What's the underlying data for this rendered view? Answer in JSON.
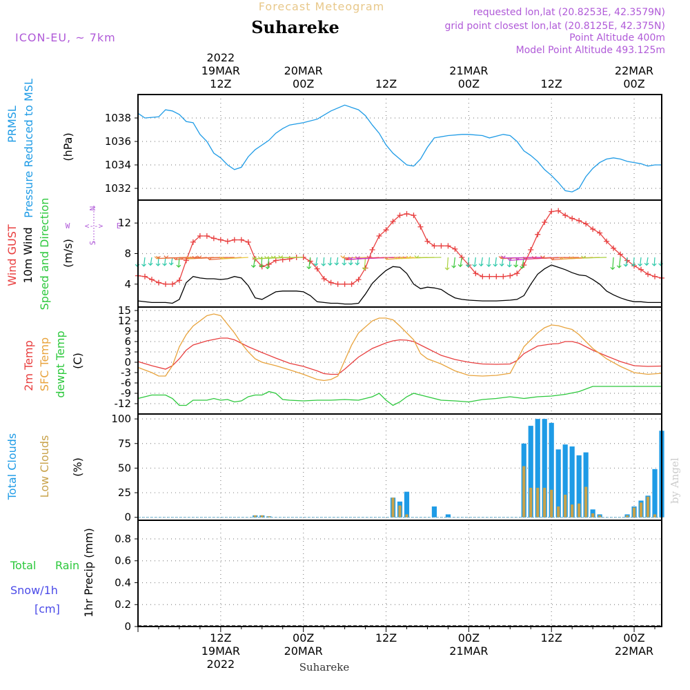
{
  "header": {
    "forecast_label": "Forecast Meteogram",
    "location": "Suhareke",
    "model": "ICON-EU, ~ 7km",
    "requested": "requested lon,lat (20.8253E, 42.3579N)",
    "grid": "grid point closest lon,lat (20.8125E, 42.375N)",
    "point_alt": "Point Altitude 400m",
    "model_alt": "Model Point Altitude 493.125m",
    "footer_location": "Suhareke",
    "watermark": "by Angel"
  },
  "time_axis": {
    "top_labels": [
      {
        "h": 12,
        "lines": [
          "2022",
          "19MAR",
          "12Z"
        ]
      },
      {
        "h": 24,
        "lines": [
          "20MAR",
          "00Z"
        ]
      },
      {
        "h": 36,
        "lines": [
          "12Z"
        ]
      },
      {
        "h": 48,
        "lines": [
          "21MAR",
          "00Z"
        ]
      },
      {
        "h": 60,
        "lines": [
          "12Z"
        ]
      },
      {
        "h": 72,
        "lines": [
          "22MAR",
          "00Z"
        ]
      }
    ],
    "bottom_labels": [
      {
        "h": 12,
        "lines": [
          "12Z",
          "19MAR",
          "2022"
        ]
      },
      {
        "h": 24,
        "lines": [
          "00Z",
          "20MAR"
        ]
      },
      {
        "h": 36,
        "lines": [
          "12Z"
        ]
      },
      {
        "h": 48,
        "lines": [
          "00Z",
          "21MAR"
        ]
      },
      {
        "h": 60,
        "lines": [
          "12Z"
        ]
      },
      {
        "h": 72,
        "lines": [
          "00Z",
          "22MAR"
        ]
      }
    ]
  },
  "chart_data": [
    {
      "type": "line",
      "title": "PRMSL Pressure Reduced to MSL",
      "ylabel": "(hPa)",
      "ylim": [
        1031,
        1040
      ],
      "yticks": [
        1032,
        1034,
        1036,
        1038
      ],
      "series": [
        {
          "name": "PRMSL Pressure Reduced to MSL",
          "color": "#1e9be6",
          "x": [
            0,
            1,
            3,
            4,
            5,
            6,
            7,
            8,
            9,
            10,
            11,
            12,
            13,
            14,
            15,
            16,
            17,
            18,
            19,
            20,
            21,
            22,
            23,
            24,
            26,
            28,
            30,
            32,
            33,
            34,
            35,
            36,
            37,
            38,
            39,
            40,
            41,
            42,
            43,
            45,
            47,
            48,
            50,
            51,
            53,
            54,
            55,
            56,
            57,
            58,
            59,
            60,
            61,
            62,
            63,
            64,
            65,
            66,
            67,
            68,
            69,
            70,
            71,
            72,
            73,
            74,
            75,
            76
          ],
          "y": [
            1038.4,
            1038.0,
            1038.1,
            1038.7,
            1038.6,
            1038.3,
            1037.7,
            1037.6,
            1036.6,
            1036.0,
            1035.0,
            1034.6,
            1034.0,
            1033.6,
            1033.8,
            1034.7,
            1035.3,
            1035.7,
            1036.1,
            1036.7,
            1037.1,
            1037.4,
            1037.5,
            1037.6,
            1037.9,
            1038.6,
            1039.1,
            1038.7,
            1038.2,
            1037.4,
            1036.7,
            1035.7,
            1035.0,
            1034.5,
            1034.0,
            1033.9,
            1034.5,
            1035.5,
            1036.3,
            1036.5,
            1036.6,
            1036.6,
            1036.5,
            1036.3,
            1036.6,
            1036.5,
            1036.0,
            1035.2,
            1034.8,
            1034.3,
            1033.6,
            1033.1,
            1032.5,
            1031.8,
            1031.7,
            1032.0,
            1033.0,
            1033.7,
            1034.2,
            1034.5,
            1034.6,
            1034.5,
            1034.3,
            1034.2,
            1034.1,
            1033.9,
            1034.0,
            1034.0
          ]
        }
      ]
    },
    {
      "type": "line",
      "title": "Wind GUST 10m Wind Speed and Direction",
      "ylabel": "(m/s)",
      "ylim": [
        1,
        15
      ],
      "yticks": [
        4,
        8,
        12
      ],
      "compass": {
        "n": "N",
        "s": "S",
        "w": "W",
        "e": "E"
      },
      "series": [
        {
          "name": "Wind GUST",
          "color": "#e83e3e",
          "marker": "+",
          "x": [
            0,
            1,
            2,
            3,
            4,
            5,
            6,
            7,
            8,
            9,
            10,
            11,
            12,
            13,
            14,
            15,
            16,
            17,
            18,
            19,
            20,
            21,
            22,
            23,
            24,
            25,
            26,
            27,
            28,
            29,
            30,
            31,
            32,
            33,
            34,
            35,
            36,
            37,
            38,
            39,
            40,
            41,
            42,
            43,
            44,
            45,
            46,
            47,
            48,
            49,
            50,
            51,
            52,
            53,
            54,
            55,
            56,
            57,
            58,
            59,
            60,
            61,
            62,
            63,
            64,
            65,
            66,
            67,
            68,
            69,
            70,
            71,
            72,
            73,
            74,
            75,
            76
          ],
          "y": [
            5.1,
            5.0,
            4.6,
            4.2,
            4.0,
            4.0,
            4.5,
            7.1,
            9.5,
            10.3,
            10.3,
            10.0,
            9.8,
            9.6,
            9.8,
            9.8,
            9.5,
            7.3,
            6.3,
            6.6,
            7.1,
            7.2,
            7.3,
            7.5,
            7.5,
            7.0,
            6.0,
            4.7,
            4.2,
            4.0,
            4.0,
            4.0,
            4.6,
            6.1,
            8.5,
            10.3,
            11.1,
            12.2,
            13.0,
            13.2,
            13.0,
            11.5,
            9.6,
            9.0,
            9.0,
            9.0,
            8.6,
            7.5,
            6.5,
            5.4,
            5.0,
            5.0,
            5.0,
            5.0,
            5.1,
            5.4,
            6.5,
            8.5,
            10.5,
            12.1,
            13.5,
            13.6,
            13.0,
            12.6,
            12.3,
            11.9,
            11.2,
            10.7,
            9.6,
            8.7,
            7.9,
            7.1,
            6.4,
            5.9,
            5.3,
            5.0,
            4.8
          ]
        },
        {
          "name": "10m Wind",
          "color": "#000000",
          "x": [
            0,
            2,
            4,
            5,
            6,
            7,
            8,
            9,
            10,
            11,
            12,
            13,
            14,
            15,
            16,
            17,
            18,
            19,
            20,
            21,
            22,
            23,
            24,
            25,
            26,
            27,
            28,
            29,
            30,
            31,
            32,
            33,
            34,
            35,
            36,
            37,
            38,
            39,
            40,
            41,
            42,
            43,
            44,
            45,
            46,
            47,
            48,
            50,
            52,
            54,
            55,
            56,
            57,
            58,
            59,
            60,
            61,
            62,
            63,
            64,
            65,
            66,
            67,
            68,
            69,
            70,
            71,
            72,
            73,
            74,
            75,
            76
          ],
          "y": [
            1.8,
            1.6,
            1.6,
            1.5,
            2.0,
            4.2,
            5.0,
            4.8,
            4.7,
            4.7,
            4.6,
            4.7,
            5.0,
            4.8,
            3.8,
            2.2,
            2.0,
            2.5,
            3.0,
            3.1,
            3.1,
            3.1,
            3.0,
            2.5,
            1.7,
            1.6,
            1.5,
            1.5,
            1.4,
            1.4,
            1.5,
            2.7,
            4.1,
            5.0,
            5.8,
            6.3,
            6.2,
            5.4,
            4.0,
            3.4,
            3.6,
            3.5,
            3.3,
            2.7,
            2.2,
            2.0,
            1.9,
            1.8,
            1.8,
            1.9,
            2.0,
            2.5,
            4.0,
            5.3,
            6.0,
            6.5,
            6.2,
            5.9,
            5.5,
            5.2,
            5.1,
            4.6,
            4.0,
            3.1,
            2.6,
            2.2,
            1.9,
            1.7,
            1.7,
            1.6,
            1.6,
            1.6
          ]
        },
        {
          "name": "Speed and Direction",
          "type": "wind-barbs",
          "colors": [
            "#1e6be6",
            "#e8a33c",
            "#e83e3e",
            "#3cc83c",
            "#c83cc8"
          ]
        }
      ]
    },
    {
      "type": "line",
      "title": "2m Temp, SFC Temp, dewpt Temp",
      "ylabel": "(C)",
      "ylim": [
        -15,
        16
      ],
      "yticks": [
        15,
        12,
        9,
        6,
        3,
        0,
        -3,
        -6,
        -9,
        -12
      ],
      "series": [
        {
          "name": "2m Temp",
          "color": "#e83e3e",
          "x": [
            0,
            2,
            4,
            5,
            6,
            7,
            8,
            10,
            12,
            13,
            14,
            15,
            16,
            18,
            20,
            22,
            24,
            26,
            27,
            28,
            29,
            30,
            32,
            34,
            36,
            37,
            38,
            39,
            40,
            42,
            44,
            46,
            48,
            50,
            52,
            54,
            55,
            56,
            58,
            59,
            60,
            61,
            62,
            63,
            64,
            66,
            68,
            70,
            72,
            74,
            76
          ],
          "y": [
            0.2,
            -1.0,
            -2.0,
            -1.0,
            1.0,
            3.5,
            5.0,
            6.2,
            7.0,
            7.0,
            6.5,
            5.5,
            4.5,
            2.8,
            1.2,
            -0.3,
            -1.2,
            -2.5,
            -3.3,
            -3.5,
            -3.5,
            -2.0,
            1.5,
            4.0,
            5.6,
            6.2,
            6.5,
            6.4,
            6.0,
            4.0,
            2.0,
            0.8,
            0.0,
            -0.5,
            -0.6,
            -0.5,
            0.5,
            2.5,
            4.7,
            5.0,
            5.3,
            5.4,
            6.0,
            6.0,
            5.5,
            3.5,
            1.8,
            0.2,
            -1.0,
            -1.2,
            -1.1
          ]
        },
        {
          "name": "SFC Temp",
          "color": "#e8a33c",
          "x": [
            0,
            2,
            3,
            4,
            5,
            6,
            7,
            8,
            10,
            11,
            12,
            13,
            14,
            15,
            16,
            17,
            18,
            20,
            22,
            24,
            26,
            27,
            28,
            29,
            30,
            31,
            32,
            34,
            35,
            36,
            37,
            38,
            39,
            40,
            41,
            42,
            44,
            46,
            48,
            50,
            52,
            54,
            55,
            56,
            58,
            59,
            60,
            61,
            62,
            63,
            64,
            66,
            68,
            70,
            72,
            74,
            76
          ],
          "y": [
            -1.5,
            -3.0,
            -4.0,
            -4.0,
            -1.0,
            4.5,
            8.0,
            10.5,
            13.5,
            14.0,
            13.5,
            11.0,
            8.5,
            5.5,
            3.0,
            1.0,
            0.0,
            -1.0,
            -2.2,
            -3.5,
            -5.0,
            -5.3,
            -5.0,
            -4.0,
            0.5,
            5.0,
            8.5,
            12.0,
            12.8,
            12.8,
            12.3,
            10.5,
            8.5,
            6.5,
            2.5,
            1.0,
            -0.5,
            -2.5,
            -3.8,
            -4.0,
            -3.8,
            -3.2,
            0.5,
            4.5,
            8.5,
            10.0,
            10.8,
            10.6,
            10.0,
            9.5,
            8.0,
            4.0,
            1.0,
            -1.2,
            -3.0,
            -3.5,
            -3.2
          ]
        },
        {
          "name": "dewpt Temp",
          "color": "#2cc83c",
          "x": [
            0,
            2,
            4,
            5,
            6,
            7,
            8,
            10,
            11,
            12,
            13,
            14,
            15,
            16,
            17,
            18,
            19,
            20,
            21,
            22,
            24,
            26,
            28,
            30,
            32,
            34,
            35,
            36,
            37,
            38,
            39,
            40,
            41,
            42,
            44,
            46,
            48,
            50,
            52,
            54,
            56,
            58,
            60,
            62,
            64,
            66,
            68,
            70,
            72,
            74,
            76
          ],
          "y": [
            -10.5,
            -9.5,
            -9.5,
            -10.5,
            -12.5,
            -12.5,
            -11.0,
            -11.0,
            -10.5,
            -11.0,
            -10.8,
            -11.5,
            -11.2,
            -10.0,
            -9.5,
            -9.5,
            -8.5,
            -9.0,
            -10.8,
            -11.0,
            -11.2,
            -11.0,
            -11.0,
            -10.8,
            -11.0,
            -10.0,
            -9.0,
            -11.0,
            -12.5,
            -11.5,
            -10.0,
            -9.0,
            -9.5,
            -10.0,
            -11.0,
            -11.2,
            -11.5,
            -10.8,
            -10.5,
            -10.0,
            -10.5,
            -10.0,
            -9.8,
            -9.3,
            -8.5,
            -7.0,
            -7.0,
            -7.0,
            -7.0,
            -7.0,
            -7.0
          ]
        }
      ]
    },
    {
      "type": "bar",
      "title": "Total Clouds, Low Clouds",
      "ylabel": "(%)",
      "ylim": [
        -3,
        105
      ],
      "yticks": [
        0,
        25,
        50,
        75,
        100
      ],
      "series": [
        {
          "name": "Total Clouds",
          "color": "#1e9be6",
          "x": [
            17,
            18,
            19,
            37,
            38,
            39,
            43,
            45,
            56,
            57,
            58,
            59,
            60,
            61,
            62,
            63,
            64,
            65,
            66,
            67,
            71,
            72,
            73,
            74,
            75,
            76
          ],
          "y": [
            2,
            2,
            1,
            20,
            16,
            26,
            11,
            3,
            75,
            93,
            100,
            100,
            96,
            69,
            74,
            72,
            63,
            66,
            8,
            3,
            3,
            11,
            17,
            22,
            49,
            88
          ]
        },
        {
          "name": "Low Clouds",
          "color": "#c8a24a",
          "x": [
            17,
            18,
            19,
            37,
            38,
            39,
            56,
            57,
            58,
            59,
            60,
            61,
            62,
            63,
            64,
            65,
            66,
            67,
            71,
            72,
            73,
            74,
            75,
            76
          ],
          "y": [
            2,
            2,
            1,
            20,
            12,
            3,
            52,
            30,
            30,
            30,
            28,
            11,
            23,
            13,
            14,
            31,
            4,
            2,
            2,
            10,
            15,
            21,
            3,
            0
          ]
        }
      ]
    },
    {
      "type": "line",
      "title": "1hr Precip (mm)",
      "ylabel": "1hr Precip (mm)",
      "ylim": [
        0,
        0.97
      ],
      "yticks": [
        0,
        0.2,
        0.4,
        0.6,
        0.8
      ],
      "legend": {
        "total": "Total",
        "rain": "Rain",
        "snow": "Snow/1h",
        "cm": "[cm]"
      },
      "series": [
        {
          "name": "Total Rain",
          "color": "#000000",
          "x": [
            0,
            76
          ],
          "y": [
            0,
            0
          ]
        }
      ]
    }
  ]
}
